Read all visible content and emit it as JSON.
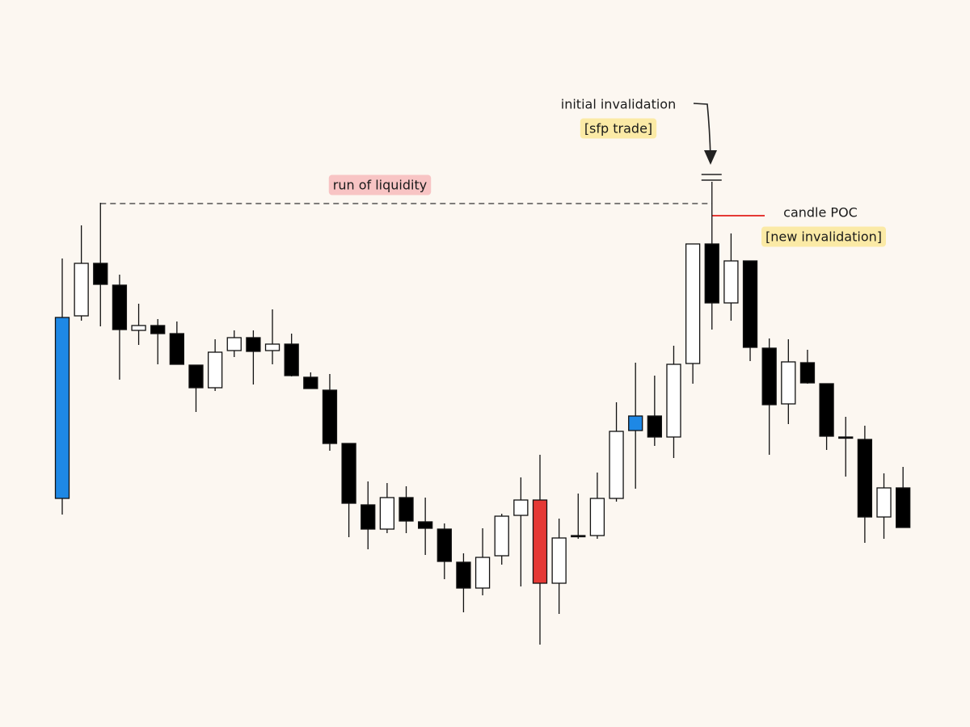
{
  "chart_data": {
    "type": "candlestick",
    "ylim": [
      0,
      900
    ],
    "candles": [
      {
        "open": 283,
        "high": 580,
        "low": 263,
        "close": 507,
        "color": "#1e88e5"
      },
      {
        "open": 509,
        "high": 621,
        "low": 503,
        "close": 574,
        "color": "#ffffff"
      },
      {
        "open": 574,
        "high": 649,
        "low": 496,
        "close": 548,
        "color": "#000000"
      },
      {
        "open": 547,
        "high": 560,
        "low": 430,
        "close": 492,
        "color": "#000000"
      },
      {
        "open": 491,
        "high": 524,
        "low": 473,
        "close": 497,
        "color": "#ffffff"
      },
      {
        "open": 497,
        "high": 505,
        "low": 449,
        "close": 487,
        "color": "#000000"
      },
      {
        "open": 487,
        "high": 502,
        "low": 449,
        "close": 449,
        "color": "#000000"
      },
      {
        "open": 448,
        "high": 448,
        "low": 390,
        "close": 420,
        "color": "#000000"
      },
      {
        "open": 420,
        "high": 480,
        "low": 416,
        "close": 464,
        "color": "#ffffff"
      },
      {
        "open": 466,
        "high": 491,
        "low": 458,
        "close": 482,
        "color": "#ffffff"
      },
      {
        "open": 482,
        "high": 491,
        "low": 424,
        "close": 465,
        "color": "#000000"
      },
      {
        "open": 466,
        "high": 517,
        "low": 449,
        "close": 474,
        "color": "#ffffff"
      },
      {
        "open": 474,
        "high": 487,
        "low": 434,
        "close": 435,
        "color": "#000000"
      },
      {
        "open": 433,
        "high": 439,
        "low": 419,
        "close": 419,
        "color": "#000000"
      },
      {
        "open": 417,
        "high": 437,
        "low": 342,
        "close": 351,
        "color": "#000000"
      },
      {
        "open": 351,
        "high": 351,
        "low": 235,
        "close": 277,
        "color": "#000000"
      },
      {
        "open": 275,
        "high": 304,
        "low": 220,
        "close": 245,
        "color": "#000000"
      },
      {
        "open": 245,
        "high": 302,
        "low": 240,
        "close": 284,
        "color": "#ffffff"
      },
      {
        "open": 284,
        "high": 298,
        "low": 240,
        "close": 255,
        "color": "#000000"
      },
      {
        "open": 254,
        "high": 284,
        "low": 213,
        "close": 246,
        "color": "#000000"
      },
      {
        "open": 245,
        "high": 252,
        "low": 183,
        "close": 205,
        "color": "#000000"
      },
      {
        "open": 204,
        "high": 215,
        "low": 142,
        "close": 172,
        "color": "#000000"
      },
      {
        "open": 172,
        "high": 246,
        "low": 163,
        "close": 210,
        "color": "#ffffff"
      },
      {
        "open": 212,
        "high": 264,
        "low": 201,
        "close": 261,
        "color": "#ffffff"
      },
      {
        "open": 262,
        "high": 309,
        "low": 174,
        "close": 281,
        "color": "#ffffff"
      },
      {
        "open": 281,
        "high": 337,
        "low": 102,
        "close": 178,
        "color": "#e53935"
      },
      {
        "open": 178,
        "high": 258,
        "low": 140,
        "close": 234,
        "color": "#ffffff"
      },
      {
        "open": 237,
        "high": 289,
        "low": 233,
        "close": 237,
        "color": "#000000"
      },
      {
        "open": 237,
        "high": 315,
        "low": 233,
        "close": 283,
        "color": "#ffffff"
      },
      {
        "open": 283,
        "high": 402,
        "low": 279,
        "close": 366,
        "color": "#ffffff"
      },
      {
        "open": 367,
        "high": 451,
        "low": 295,
        "close": 385,
        "color": "#1e88e5"
      },
      {
        "open": 385,
        "high": 435,
        "low": 348,
        "close": 359,
        "color": "#000000"
      },
      {
        "open": 359,
        "high": 472,
        "low": 333,
        "close": 449,
        "color": "#ffffff"
      },
      {
        "open": 450,
        "high": 598,
        "low": 425,
        "close": 598,
        "color": "#ffffff"
      },
      {
        "open": 598,
        "high": 675,
        "low": 492,
        "close": 525,
        "color": "#000000"
      },
      {
        "open": 525,
        "high": 611,
        "low": 503,
        "close": 577,
        "color": "#ffffff"
      },
      {
        "open": 577,
        "high": 577,
        "low": 453,
        "close": 470,
        "color": "#000000"
      },
      {
        "open": 469,
        "high": 481,
        "low": 337,
        "close": 399,
        "color": "#000000"
      },
      {
        "open": 400,
        "high": 480,
        "low": 375,
        "close": 452,
        "color": "#ffffff"
      },
      {
        "open": 451,
        "high": 467,
        "low": 425,
        "close": 426,
        "color": "#000000"
      },
      {
        "open": 425,
        "high": 425,
        "low": 343,
        "close": 360,
        "color": "#000000"
      },
      {
        "open": 359,
        "high": 384,
        "low": 310,
        "close": 359,
        "color": "#000000"
      },
      {
        "open": 356,
        "high": 373,
        "low": 228,
        "close": 260,
        "color": "#000000"
      },
      {
        "open": 260,
        "high": 314,
        "low": 233,
        "close": 296,
        "color": "#ffffff"
      },
      {
        "open": 296,
        "high": 322,
        "low": 247,
        "close": 247,
        "color": "#000000"
      }
    ],
    "annotations": [
      {
        "text": "run of liquidity",
        "level": 648,
        "background": "#f8c4c4"
      },
      {
        "text": "initial invalidation",
        "note": "[sfp trade]",
        "level": 680,
        "background": "#fbeaa6"
      },
      {
        "text": "candle POC",
        "note": "[new invalidation]",
        "level": 633,
        "color": "#e53935",
        "background": "#fbeaa6"
      }
    ]
  }
}
